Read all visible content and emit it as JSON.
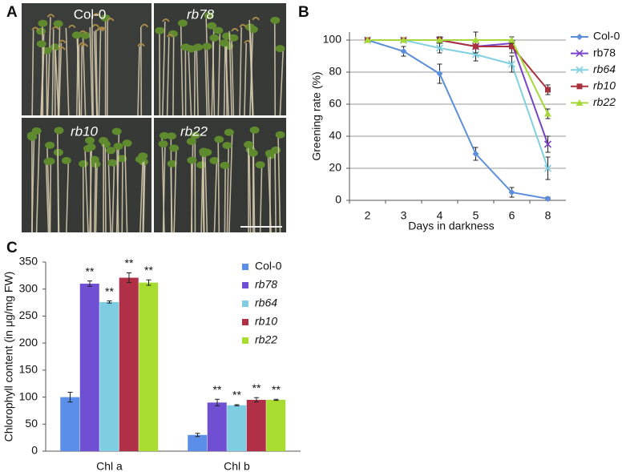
{
  "panel_labels": [
    "A",
    "B",
    "C"
  ],
  "photo": {
    "labels": [
      "Col-0",
      "rb78",
      "rb10",
      "rb22"
    ],
    "italic": [
      false,
      true,
      true,
      true
    ]
  },
  "chart_data": [
    {
      "type": "line",
      "xlabel": "Days in darkness",
      "ylabel": "Greening rate (%)",
      "categories": [
        "2",
        "3",
        "4",
        "5",
        "6",
        "8"
      ],
      "ylim": [
        0,
        105
      ],
      "yticks": [
        0,
        20,
        40,
        60,
        80,
        100
      ],
      "grid": true,
      "legend": "right",
      "series": [
        {
          "name": "Col-0",
          "color": "#5b8fdc",
          "marker": "diamond",
          "italic": false,
          "values": [
            100,
            93,
            79,
            29,
            5,
            1
          ],
          "errors": [
            0,
            3,
            6,
            4,
            3,
            1
          ]
        },
        {
          "name": "rb78",
          "color": "#7a44c8",
          "marker": "x",
          "italic": false,
          "values": [
            100,
            100,
            100,
            96,
            98,
            35
          ],
          "errors": [
            0,
            0,
            2,
            9,
            2,
            5
          ]
        },
        {
          "name": "rb64",
          "color": "#80d0e2",
          "marker": "x",
          "italic": true,
          "values": [
            100,
            100,
            95,
            91,
            85,
            20
          ],
          "errors": [
            0,
            0,
            3,
            4,
            5,
            7
          ]
        },
        {
          "name": "rb10",
          "color": "#a8323e",
          "marker": "square",
          "italic": true,
          "values": [
            100,
            100,
            100,
            96,
            96,
            69
          ],
          "errors": [
            0,
            0,
            0,
            4,
            4,
            3
          ]
        },
        {
          "name": "rb22",
          "color": "#a6d83a",
          "marker": "triangle",
          "italic": true,
          "values": [
            100,
            100,
            100,
            100,
            100,
            54
          ],
          "errors": [
            0,
            0,
            0,
            0,
            2,
            3
          ]
        }
      ]
    },
    {
      "type": "bar",
      "ylabel": "Chlorophyll content (in μg/mg FW)",
      "categories": [
        "Chl a",
        "Chl b"
      ],
      "ylim": [
        0,
        350
      ],
      "yticks": [
        0,
        50,
        100,
        150,
        200,
        250,
        300,
        350
      ],
      "grid": false,
      "legend": "right",
      "series": [
        {
          "name": "Col-0",
          "color": "#5b8ee8",
          "italic": false,
          "values": [
            100,
            30
          ],
          "errors": [
            9,
            3
          ]
        },
        {
          "name": "rb78",
          "color": "#6f4fd2",
          "italic": true,
          "values": [
            310,
            90
          ],
          "errors": [
            5,
            6
          ],
          "significance": [
            "**",
            "**"
          ]
        },
        {
          "name": "rb64",
          "color": "#7ecde2",
          "italic": true,
          "values": [
            276,
            85
          ],
          "errors": [
            2,
            1
          ],
          "significance": [
            "**",
            "**"
          ]
        },
        {
          "name": "rb10",
          "color": "#b03048",
          "italic": true,
          "values": [
            321,
            95
          ],
          "errors": [
            9,
            4
          ],
          "significance": [
            "**",
            "**"
          ]
        },
        {
          "name": "rb22",
          "color": "#a8dc30",
          "italic": true,
          "values": [
            312,
            95
          ],
          "errors": [
            5,
            1
          ],
          "significance": [
            "**",
            "**"
          ]
        }
      ]
    }
  ]
}
